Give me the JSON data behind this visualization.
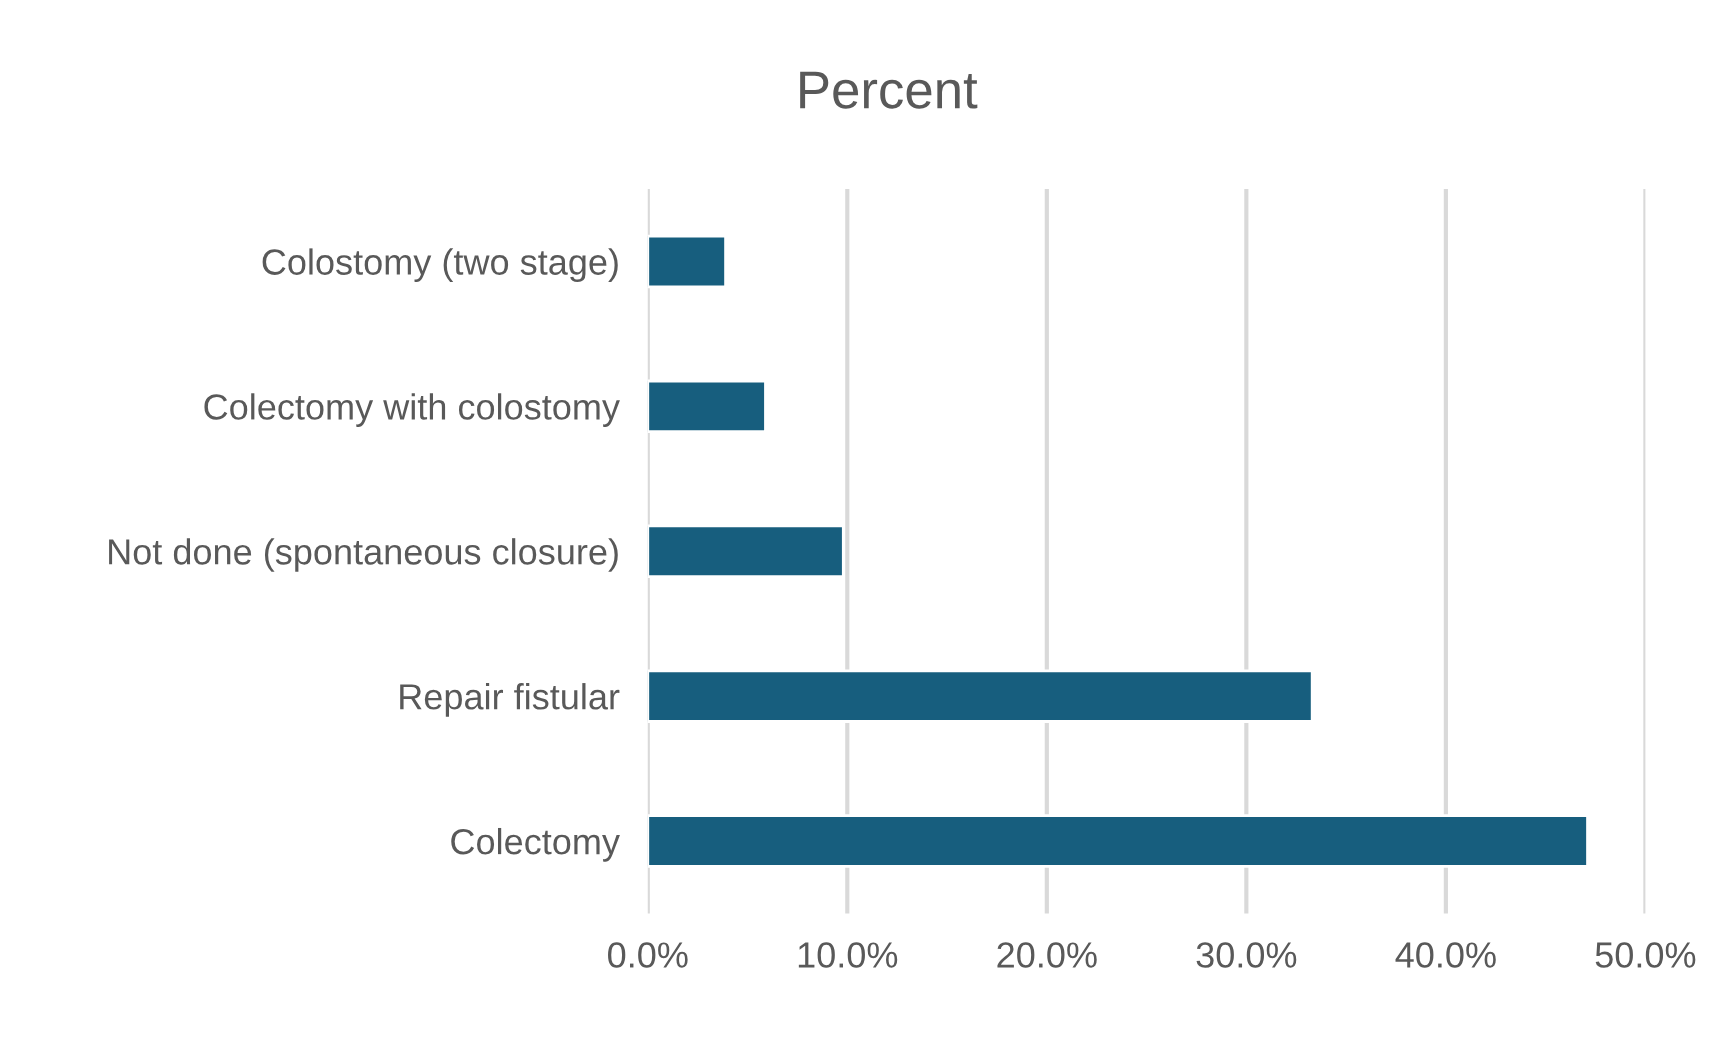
{
  "chart_data": {
    "type": "bar",
    "orientation": "horizontal",
    "title": "Percent",
    "categories": [
      "Colostomy (two stage)",
      "Colectomy with colostomy",
      "Not done (spontaneous closure)",
      "Repair fistular",
      "Colectomy"
    ],
    "values": [
      3.9,
      5.9,
      9.8,
      33.3,
      47.1
    ],
    "color": "#175e7e",
    "xlim": [
      0,
      50
    ],
    "xticks": [
      {
        "value": 0,
        "label": "0.0%"
      },
      {
        "value": 10,
        "label": "10.0%"
      },
      {
        "value": 20,
        "label": "20.0%"
      },
      {
        "value": 30,
        "label": "30.0%"
      },
      {
        "value": 40,
        "label": "40.0%"
      },
      {
        "value": 50,
        "label": "50.0%"
      }
    ],
    "grid": "x"
  }
}
